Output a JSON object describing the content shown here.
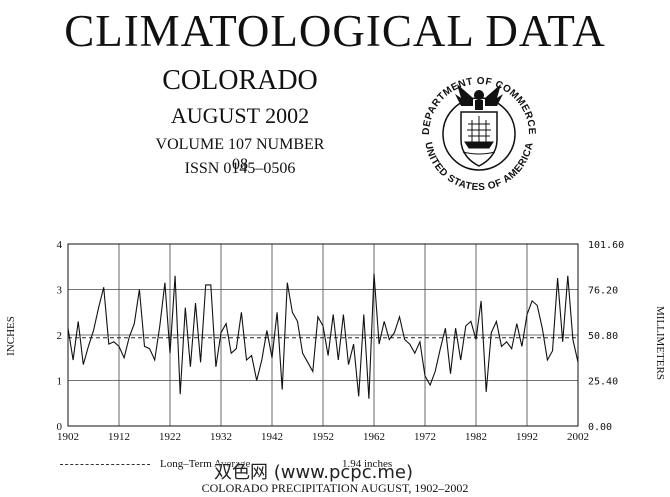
{
  "header": {
    "title": "CLIMATOLOGICAL DATA",
    "state": "COLORADO",
    "month": "AUGUST 2002",
    "volume": "VOLUME 107 NUMBER 08",
    "issn": "ISSN 0145–0506"
  },
  "seal": {
    "text_top": "DEPARTMENT OF COMMERCE",
    "text_bottom": "UNITED STATES OF AMERICA"
  },
  "chart_data": {
    "type": "line",
    "title": "COLORADO PRECIPITATION AUGUST, 1902–2002",
    "ylabel": "INCHES",
    "ylabel_right": "MILLIMETERS",
    "ylim": [
      0,
      4
    ],
    "xlim": [
      1902,
      2002
    ],
    "y_ticks": [
      "0",
      "1",
      "2",
      "3",
      "4"
    ],
    "y_ticks_right": [
      "0.00",
      "25.40",
      "50.80",
      "76.20",
      "101.60"
    ],
    "x_ticks": [
      "1902",
      "1912",
      "1922",
      "1932",
      "1942",
      "1952",
      "1962",
      "1972",
      "1982",
      "1992",
      "2002"
    ],
    "grid": true,
    "legend": {
      "label": "Long–Term Average",
      "value": "1.94 inches",
      "style": "dashed"
    },
    "reference_line": 1.94,
    "series": [
      {
        "x": [
          1902,
          1903,
          1904,
          1905,
          1906,
          1907,
          1908,
          1909,
          1910,
          1911,
          1912,
          1913,
          1914,
          1915,
          1916,
          1917,
          1918,
          1919,
          1920,
          1921,
          1922,
          1923,
          1924,
          1925,
          1926,
          1927,
          1928,
          1929,
          1930,
          1931,
          1932,
          1933,
          1934,
          1935,
          1936,
          1937,
          1938,
          1939,
          1940,
          1941,
          1942,
          1943,
          1944,
          1945,
          1946,
          1947,
          1948,
          1949,
          1950,
          1951,
          1952,
          1953,
          1954,
          1955,
          1956,
          1957,
          1958,
          1959,
          1960,
          1961,
          1962,
          1963,
          1964,
          1965,
          1966,
          1967,
          1968,
          1969,
          1970,
          1971,
          1972,
          1973,
          1974,
          1975,
          1976,
          1977,
          1978,
          1979,
          1980,
          1981,
          1982,
          1983,
          1984,
          1985,
          1986,
          1987,
          1988,
          1989,
          1990,
          1991,
          1992,
          1993,
          1994,
          1995,
          1996,
          1997,
          1998,
          1999,
          2000,
          2001,
          2002
        ],
        "values": [
          2.15,
          1.45,
          2.3,
          1.35,
          1.75,
          2.1,
          2.6,
          3.05,
          1.8,
          1.85,
          1.75,
          1.5,
          1.95,
          2.25,
          3.0,
          1.75,
          1.7,
          1.45,
          2.2,
          3.15,
          1.6,
          3.3,
          0.7,
          2.6,
          1.3,
          2.7,
          1.4,
          3.1,
          3.1,
          1.3,
          2.05,
          2.25,
          1.6,
          1.7,
          2.5,
          1.45,
          1.55,
          1.0,
          1.45,
          2.1,
          1.5,
          2.5,
          0.8,
          3.15,
          2.5,
          2.3,
          1.6,
          1.4,
          1.2,
          2.4,
          2.2,
          1.55,
          2.45,
          1.45,
          2.45,
          1.35,
          1.8,
          0.65,
          2.45,
          0.6,
          3.35,
          1.8,
          2.3,
          1.9,
          2.05,
          2.4,
          1.9,
          1.8,
          1.6,
          1.85,
          1.1,
          0.9,
          1.2,
          1.7,
          2.15,
          1.15,
          2.15,
          1.45,
          2.2,
          2.3,
          1.9,
          2.75,
          0.75,
          2.05,
          2.3,
          1.75,
          1.85,
          1.7,
          2.25,
          1.75,
          2.45,
          2.75,
          2.65,
          2.15,
          1.45,
          1.65,
          3.25,
          1.85,
          3.3,
          1.9,
          1.4
        ]
      }
    ]
  },
  "watermark": "双色网 (www.pcpc.me)"
}
